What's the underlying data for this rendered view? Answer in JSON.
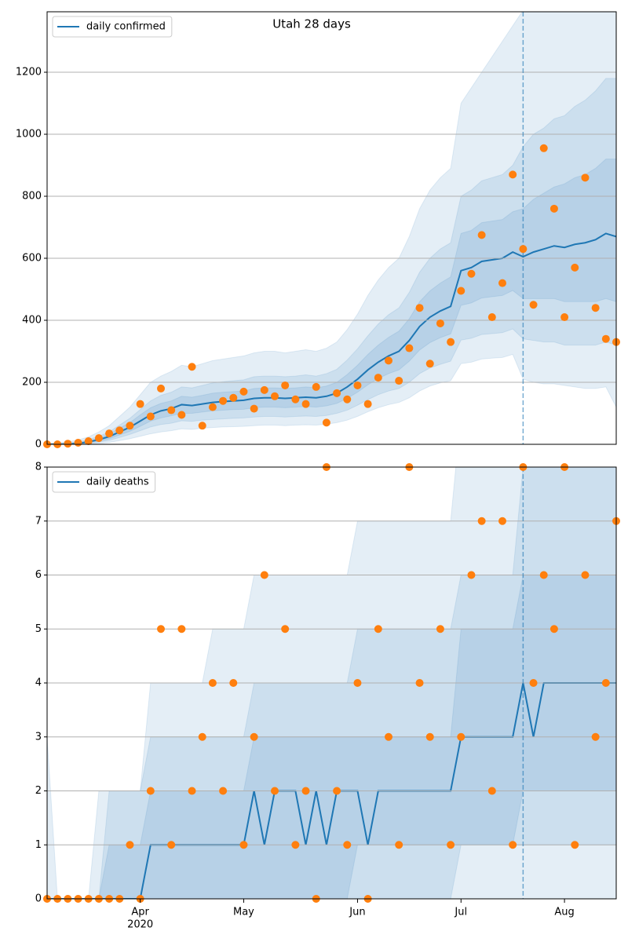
{
  "chart_data": [
    {
      "type": "line",
      "title": "Utah 28 days",
      "ylim": [
        0,
        1395
      ],
      "yticks": [
        0,
        200,
        400,
        600,
        800,
        1000,
        1200
      ],
      "grid": true,
      "legend": "upper left",
      "vline": 46,
      "vline_color": "#1f77b4",
      "band_color": "#1f77b4",
      "series": [
        {
          "name": "daily confirmed",
          "color": "#1f77b4",
          "values": [
            0,
            0,
            1,
            3,
            8,
            15,
            25,
            40,
            55,
            75,
            95,
            108,
            115,
            128,
            125,
            130,
            135,
            138,
            140,
            142,
            148,
            150,
            150,
            148,
            150,
            152,
            150,
            155,
            165,
            185,
            210,
            240,
            265,
            285,
            300,
            335,
            380,
            410,
            430,
            445,
            560,
            570,
            590,
            595,
            600,
            620,
            605,
            620,
            630,
            640,
            635,
            645,
            650,
            660,
            680,
            670
          ]
        }
      ],
      "observed": {
        "color": "#ff7f0e",
        "values": [
          0,
          0,
          2,
          5,
          10,
          20,
          35,
          45,
          60,
          130,
          90,
          180,
          110,
          95,
          250,
          60,
          120,
          140,
          150,
          170,
          115,
          175,
          155,
          190,
          145,
          130,
          185,
          70,
          165,
          145,
          190,
          130,
          215,
          270,
          205,
          310,
          440,
          260,
          390,
          330,
          495,
          550,
          675,
          410,
          520,
          870,
          630,
          450,
          955,
          760,
          410,
          570,
          860,
          440,
          340,
          330
        ]
      },
      "bands": [
        {
          "lower": [
            0,
            0,
            0,
            0,
            1,
            3,
            6,
            12,
            18,
            26,
            34,
            40,
            44,
            50,
            48,
            52,
            54,
            56,
            57,
            58,
            60,
            62,
            62,
            60,
            62,
            63,
            62,
            65,
            70,
            78,
            90,
            105,
            118,
            128,
            135,
            150,
            172,
            188,
            198,
            205,
            260,
            265,
            275,
            278,
            280,
            290,
            210,
            200,
            195,
            195,
            190,
            185,
            180,
            180,
            185,
            120
          ],
          "upper": [
            3,
            5,
            8,
            14,
            24,
            40,
            60,
            90,
            120,
            160,
            200,
            220,
            235,
            255,
            250,
            260,
            270,
            275,
            280,
            285,
            295,
            300,
            300,
            295,
            300,
            305,
            300,
            310,
            330,
            370,
            420,
            480,
            530,
            570,
            600,
            670,
            760,
            820,
            860,
            890,
            1100,
            1150,
            1200,
            1250,
            1300,
            1350,
            1400,
            1400,
            1400,
            1400,
            1400,
            1400,
            1400,
            1400,
            1400,
            1400
          ]
        },
        {
          "lower": [
            0,
            0,
            0,
            1,
            3,
            7,
            13,
            22,
            32,
            44,
            56,
            64,
            68,
            76,
            74,
            78,
            80,
            82,
            84,
            85,
            88,
            90,
            90,
            88,
            90,
            91,
            90,
            93,
            100,
            110,
            126,
            144,
            160,
            172,
            180,
            200,
            228,
            246,
            258,
            268,
            336,
            342,
            354,
            357,
            360,
            372,
            340,
            335,
            330,
            330,
            320,
            320,
            320,
            320,
            330,
            320
          ],
          "upper": [
            1,
            2,
            4,
            8,
            15,
            26,
            40,
            62,
            84,
            112,
            140,
            158,
            168,
            185,
            182,
            190,
            198,
            202,
            205,
            208,
            218,
            220,
            220,
            218,
            220,
            224,
            220,
            228,
            242,
            272,
            308,
            350,
            388,
            418,
            440,
            490,
            555,
            600,
            630,
            650,
            800,
            820,
            850,
            860,
            870,
            900,
            960,
            1000,
            1020,
            1050,
            1060,
            1090,
            1110,
            1140,
            1180,
            1180
          ]
        },
        {
          "lower": [
            0,
            0,
            0,
            2,
            5,
            10,
            18,
            30,
            42,
            58,
            75,
            85,
            92,
            100,
            100,
            104,
            108,
            110,
            112,
            113,
            118,
            120,
            120,
            118,
            120,
            122,
            120,
            124,
            132,
            148,
            168,
            192,
            212,
            228,
            240,
            268,
            304,
            328,
            344,
            356,
            448,
            456,
            472,
            476,
            480,
            496,
            470,
            470,
            470,
            470,
            460,
            460,
            460,
            460,
            470,
            460
          ],
          "upper": [
            0,
            1,
            2,
            5,
            11,
            20,
            33,
            52,
            70,
            95,
            118,
            132,
            140,
            155,
            152,
            158,
            165,
            168,
            170,
            172,
            180,
            182,
            182,
            180,
            182,
            185,
            182,
            188,
            200,
            225,
            255,
            290,
            320,
            345,
            365,
            405,
            460,
            495,
            520,
            540,
            680,
            690,
            715,
            720,
            725,
            750,
            760,
            790,
            810,
            830,
            840,
            860,
            870,
            890,
            920,
            920
          ]
        }
      ]
    },
    {
      "type": "line",
      "categories": [
        null,
        null,
        null,
        null,
        null,
        null,
        null,
        null,
        null,
        "Apr",
        null,
        null,
        null,
        null,
        null,
        null,
        null,
        null,
        null,
        "May",
        null,
        null,
        null,
        null,
        null,
        null,
        null,
        null,
        null,
        null,
        "Jun",
        null,
        null,
        null,
        null,
        null,
        null,
        null,
        null,
        null,
        "Jul",
        null,
        null,
        null,
        null,
        null,
        null,
        null,
        null,
        null,
        "Aug",
        null,
        null,
        null,
        null,
        null
      ],
      "x_year": "2020",
      "x_year_at": 9,
      "ylim": [
        0,
        8
      ],
      "yticks": [
        0,
        1,
        2,
        3,
        4,
        5,
        6,
        7,
        8
      ],
      "grid": true,
      "legend": "upper left",
      "vline": 46,
      "vline_color": "#1f77b4",
      "band_color": "#1f77b4",
      "series": [
        {
          "name": "daily deaths",
          "color": "#1f77b4",
          "values": [
            0,
            0,
            0,
            0,
            0,
            0,
            0,
            0,
            0,
            0,
            1,
            1,
            1,
            1,
            1,
            1,
            1,
            1,
            1,
            1,
            2,
            1,
            2,
            2,
            2,
            1,
            2,
            1,
            2,
            2,
            2,
            1,
            2,
            2,
            2,
            2,
            2,
            2,
            2,
            2,
            3,
            3,
            3,
            3,
            3,
            3,
            4,
            3,
            4,
            4,
            4,
            4,
            4,
            4,
            4,
            4
          ]
        }
      ],
      "observed": {
        "color": "#ff7f0e",
        "values": [
          0,
          0,
          0,
          0,
          0,
          0,
          0,
          0,
          1,
          0,
          2,
          5,
          1,
          5,
          2,
          3,
          4,
          2,
          4,
          1,
          3,
          6,
          2,
          5,
          1,
          2,
          0,
          8,
          2,
          1,
          4,
          0,
          5,
          3,
          1,
          8,
          4,
          3,
          5,
          1,
          3,
          6,
          7,
          2,
          7,
          1,
          8,
          4,
          6,
          5,
          8,
          1,
          6,
          3,
          4,
          7
        ]
      },
      "bands": [
        {
          "lower": [
            0,
            0,
            0,
            0,
            0,
            0,
            0,
            0,
            0,
            0,
            0,
            0,
            0,
            0,
            0,
            0,
            0,
            0,
            0,
            0,
            0,
            0,
            0,
            0,
            0,
            0,
            0,
            0,
            0,
            0,
            0,
            0,
            0,
            0,
            0,
            0,
            0,
            0,
            0,
            0,
            0,
            0,
            0,
            0,
            0,
            0,
            0,
            0,
            0,
            0,
            0,
            0,
            0,
            0,
            0,
            0
          ],
          "upper": [
            3,
            0,
            0,
            0,
            0,
            2,
            2,
            2,
            2,
            2,
            4,
            4,
            4,
            4,
            4,
            4,
            5,
            5,
            5,
            5,
            6,
            6,
            6,
            6,
            6,
            6,
            6,
            6,
            6,
            6,
            7,
            7,
            7,
            7,
            7,
            7,
            7,
            7,
            7,
            7,
            9,
            9,
            9,
            9,
            9,
            9,
            9,
            9,
            9,
            9,
            9,
            9,
            9,
            9,
            9,
            9
          ]
        },
        {
          "lower": [
            0,
            0,
            0,
            0,
            0,
            0,
            0,
            0,
            0,
            0,
            0,
            0,
            0,
            0,
            0,
            0,
            0,
            0,
            0,
            0,
            0,
            0,
            0,
            0,
            0,
            0,
            0,
            0,
            0,
            0,
            0,
            0,
            0,
            0,
            0,
            0,
            0,
            0,
            0,
            0,
            1,
            1,
            1,
            1,
            1,
            1,
            1,
            1,
            1,
            1,
            1,
            1,
            1,
            1,
            1,
            1
          ],
          "upper": [
            0,
            0,
            0,
            0,
            0,
            0,
            2,
            2,
            2,
            2,
            3,
            3,
            3,
            3,
            3,
            3,
            3,
            3,
            3,
            3,
            4,
            4,
            4,
            4,
            4,
            4,
            4,
            4,
            4,
            4,
            5,
            5,
            5,
            5,
            5,
            5,
            5,
            5,
            5,
            5,
            6,
            6,
            6,
            6,
            6,
            6,
            8,
            8,
            8,
            8,
            8,
            8,
            8,
            8,
            8,
            8
          ]
        },
        {
          "lower": [
            0,
            0,
            0,
            0,
            0,
            0,
            0,
            0,
            0,
            0,
            0,
            0,
            0,
            0,
            0,
            0,
            0,
            0,
            0,
            0,
            0,
            0,
            0,
            0,
            0,
            0,
            0,
            0,
            0,
            0,
            1,
            1,
            1,
            1,
            1,
            1,
            1,
            1,
            1,
            1,
            1,
            1,
            1,
            1,
            1,
            1,
            2,
            2,
            2,
            2,
            2,
            2,
            2,
            2,
            2,
            2
          ],
          "upper": [
            0,
            0,
            0,
            0,
            0,
            0,
            1,
            1,
            1,
            1,
            2,
            2,
            2,
            2,
            2,
            2,
            2,
            2,
            2,
            2,
            3,
            3,
            3,
            3,
            3,
            3,
            3,
            3,
            3,
            3,
            3,
            3,
            3,
            3,
            3,
            3,
            3,
            3,
            3,
            3,
            5,
            5,
            5,
            5,
            5,
            5,
            6,
            6,
            6,
            6,
            6,
            6,
            6,
            6,
            6,
            6
          ]
        }
      ]
    }
  ]
}
